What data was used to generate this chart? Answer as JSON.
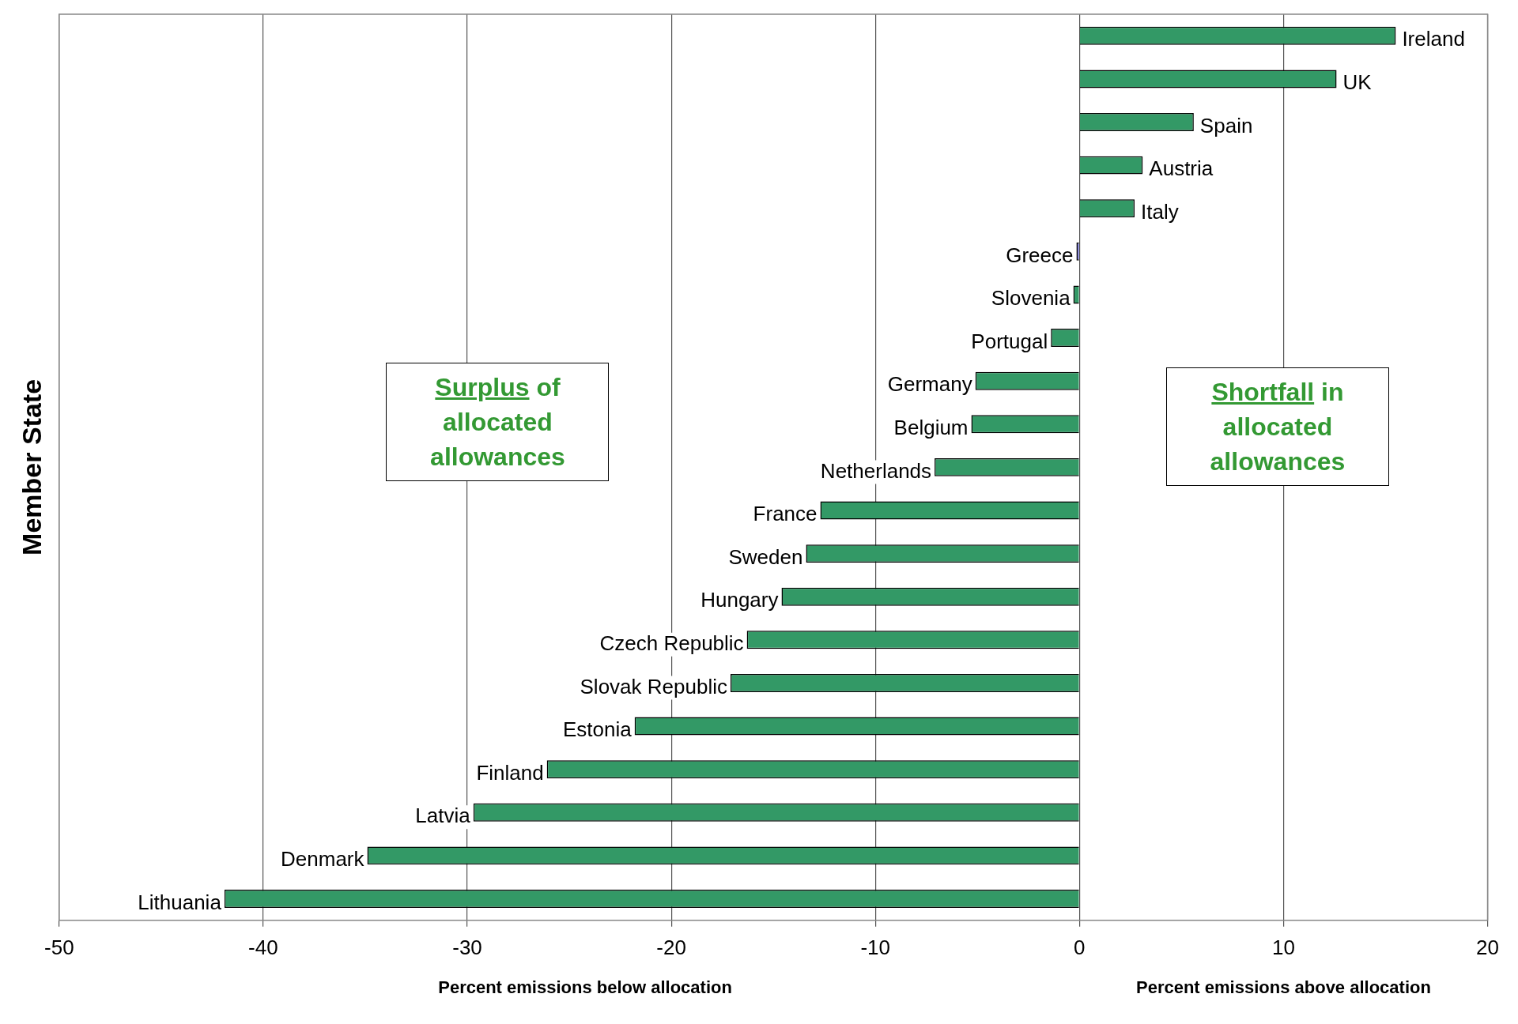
{
  "chart_data": {
    "type": "bar",
    "orientation": "horizontal",
    "ylabel": "Member State",
    "xlabel": "Percent emissions below allocation",
    "categories": [
      "Ireland",
      "UK",
      "Spain",
      "Austria",
      "Italy",
      "Greece",
      "Slovenia",
      "Portugal",
      "Germany",
      "Belgium",
      "Netherlands",
      "France",
      "Sweden",
      "Hungary",
      "Czech Republic",
      "Slovak Republic",
      "Estonia",
      "Finland",
      "Latvia",
      "Denmark",
      "Lithuania"
    ],
    "values": [
      15.5,
      12.6,
      5.6,
      3.1,
      2.7,
      -0.15,
      -0.3,
      -1.4,
      -5.1,
      -5.3,
      -7.1,
      -12.7,
      -13.4,
      -14.6,
      -16.3,
      -17.1,
      -21.8,
      -26.1,
      -29.7,
      -34.9,
      -41.9
    ],
    "colors": [
      "#339966",
      "#339966",
      "#339966",
      "#339966",
      "#339966",
      "#6666cc",
      "#339966",
      "#339966",
      "#339966",
      "#339966",
      "#339966",
      "#339966",
      "#339966",
      "#339966",
      "#339966",
      "#339966",
      "#339966",
      "#339966",
      "#339966",
      "#339966",
      "#339966"
    ],
    "xlim": [
      -50,
      20
    ],
    "xticks": [
      -50,
      -40,
      -30,
      -20,
      -10,
      0,
      10,
      20
    ],
    "grid": "x",
    "tick_labels": "x",
    "legend": false,
    "annotations": [
      "Surplus of allocated allowances",
      "Shortfall in allocated allowances",
      "Percent emissions above allocation"
    ]
  }
}
